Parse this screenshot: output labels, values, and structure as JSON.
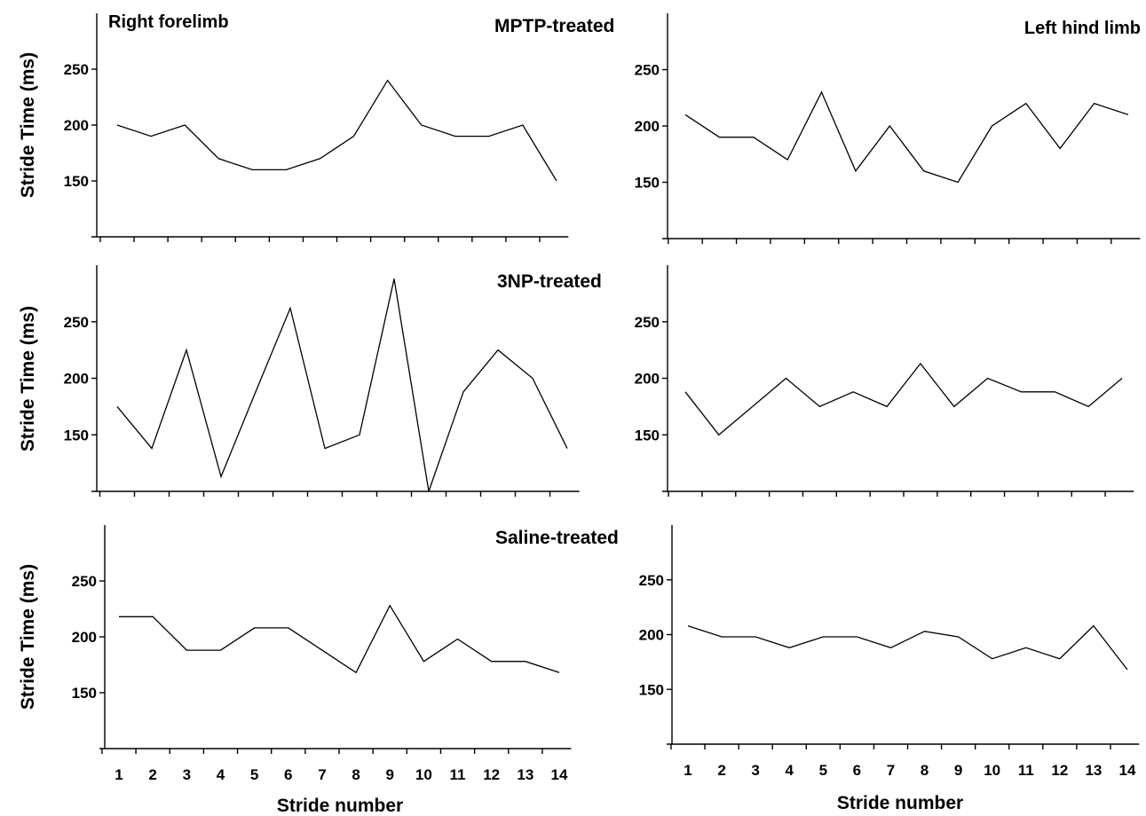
{
  "figure": {
    "row_labels": [
      "MPTP-treated",
      "3NP-treated",
      "Saline-treated"
    ],
    "column_labels": [
      "Right forelimb",
      "Left hind limb"
    ],
    "y_axis_title": "Stride Time (ms)",
    "x_axis_title": "Stride number"
  },
  "chart_data": [
    {
      "type": "line",
      "row_label": "MPTP-treated",
      "panel_label": "Right forelimb",
      "ylabel": "Stride Time (ms)",
      "xlabel": "",
      "x": [
        1,
        2,
        3,
        4,
        5,
        6,
        7,
        8,
        9,
        10,
        11,
        12,
        13,
        14
      ],
      "y": [
        200,
        190,
        200,
        170,
        160,
        160,
        170,
        190,
        240,
        200,
        190,
        190,
        200,
        150
      ],
      "yticks": [
        150,
        200,
        250
      ],
      "ylim": [
        100,
        300
      ],
      "show_xtick_labels": false,
      "grid": false
    },
    {
      "type": "line",
      "row_label": "",
      "panel_label": "Left hind limb",
      "ylabel": "",
      "xlabel": "",
      "x": [
        1,
        2,
        3,
        4,
        5,
        6,
        7,
        8,
        9,
        10,
        11,
        12,
        13,
        14
      ],
      "y": [
        210,
        190,
        190,
        170,
        230,
        160,
        200,
        160,
        150,
        200,
        220,
        180,
        220,
        210
      ],
      "yticks": [
        150,
        200,
        250
      ],
      "ylim": [
        100,
        300
      ],
      "show_xtick_labels": false,
      "grid": false
    },
    {
      "type": "line",
      "row_label": "3NP-treated",
      "panel_label": "",
      "ylabel": "Stride Time (ms)",
      "xlabel": "",
      "x": [
        1,
        2,
        3,
        4,
        5,
        6,
        7,
        8,
        9,
        10,
        11,
        12,
        13,
        14
      ],
      "y": [
        175,
        138,
        225,
        113,
        188,
        262,
        138,
        150,
        288,
        100,
        188,
        225,
        200,
        138
      ],
      "yticks": [
        150,
        200,
        250
      ],
      "ylim": [
        100,
        300
      ],
      "show_xtick_labels": false,
      "grid": false
    },
    {
      "type": "line",
      "row_label": "",
      "panel_label": "",
      "ylabel": "",
      "xlabel": "",
      "x": [
        1,
        2,
        3,
        4,
        5,
        6,
        7,
        8,
        9,
        10,
        11,
        12,
        13,
        14
      ],
      "y": [
        188,
        150,
        175,
        200,
        175,
        188,
        175,
        213,
        175,
        200,
        188,
        188,
        175,
        200
      ],
      "yticks": [
        150,
        200,
        250
      ],
      "ylim": [
        100,
        300
      ],
      "show_xtick_labels": false,
      "grid": false
    },
    {
      "type": "line",
      "row_label": "Saline-treated",
      "panel_label": "",
      "ylabel": "Stride Time (ms)",
      "xlabel": "Stride number",
      "x": [
        1,
        2,
        3,
        4,
        5,
        6,
        7,
        8,
        9,
        10,
        11,
        12,
        13,
        14
      ],
      "y": [
        218,
        218,
        188,
        188,
        208,
        208,
        188,
        168,
        228,
        178,
        198,
        178,
        178,
        168
      ],
      "yticks": [
        150,
        200,
        250
      ],
      "ylim": [
        100,
        300
      ],
      "show_xtick_labels": true,
      "grid": false
    },
    {
      "type": "line",
      "row_label": "",
      "panel_label": "",
      "ylabel": "",
      "xlabel": "Stride number",
      "x": [
        1,
        2,
        3,
        4,
        5,
        6,
        7,
        8,
        9,
        10,
        11,
        12,
        13,
        14
      ],
      "y": [
        208,
        198,
        198,
        188,
        198,
        198,
        188,
        203,
        198,
        178,
        188,
        178,
        208,
        168
      ],
      "yticks": [
        150,
        200,
        250
      ],
      "ylim": [
        100,
        300
      ],
      "show_xtick_labels": true,
      "grid": false
    }
  ]
}
